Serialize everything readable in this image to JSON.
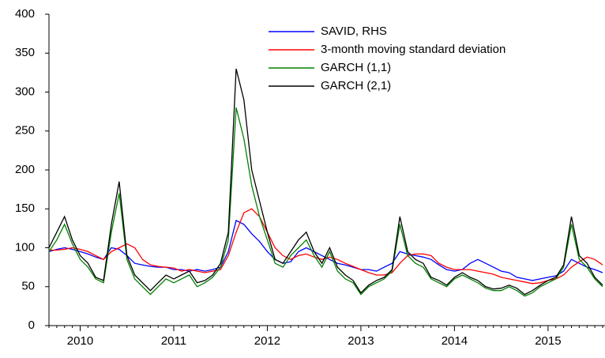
{
  "chart_data": {
    "type": "line",
    "categories": [
      null,
      null,
      null,
      null,
      "2010",
      null,
      null,
      null,
      null,
      null,
      null,
      null,
      null,
      null,
      null,
      null,
      "2011",
      null,
      null,
      null,
      null,
      null,
      null,
      null,
      null,
      null,
      null,
      null,
      "2012",
      null,
      null,
      null,
      null,
      null,
      null,
      null,
      null,
      null,
      null,
      null,
      "2013",
      null,
      null,
      null,
      null,
      null,
      null,
      null,
      null,
      null,
      null,
      null,
      "2014",
      null,
      null,
      null,
      null,
      null,
      null,
      null,
      null,
      null,
      null,
      null,
      "2015",
      null,
      null,
      null,
      null,
      null,
      null,
      null
    ],
    "series": [
      {
        "name": "SAVID, RHS",
        "color": "#0000ff",
        "values": [
          95,
          98,
          100,
          98,
          95,
          92,
          88,
          85,
          100,
          98,
          90,
          80,
          78,
          76,
          75,
          75,
          72,
          72,
          70,
          72,
          70,
          72,
          75,
          95,
          135,
          130,
          118,
          108,
          95,
          85,
          80,
          82,
          95,
          100,
          95,
          90,
          85,
          80,
          78,
          75,
          72,
          72,
          70,
          75,
          80,
          95,
          92,
          90,
          88,
          85,
          78,
          72,
          70,
          72,
          80,
          85,
          80,
          75,
          70,
          68,
          62,
          60,
          58,
          60,
          62,
          64,
          70,
          85,
          80,
          75,
          72,
          68
        ]
      },
      {
        "name": "3-month moving standard deviation",
        "color": "#ff0000",
        "values": [
          97,
          97,
          98,
          100,
          98,
          95,
          90,
          85,
          95,
          100,
          105,
          100,
          85,
          78,
          76,
          75,
          74,
          70,
          72,
          70,
          68,
          70,
          72,
          90,
          120,
          145,
          150,
          140,
          120,
          100,
          90,
          85,
          90,
          92,
          88,
          85,
          88,
          85,
          80,
          76,
          72,
          68,
          65,
          65,
          68,
          80,
          90,
          92,
          92,
          90,
          80,
          75,
          72,
          72,
          72,
          70,
          68,
          66,
          62,
          60,
          58,
          56,
          54,
          55,
          58,
          60,
          65,
          75,
          82,
          88,
          85,
          78
        ]
      },
      {
        "name": "GARCH (1,1)",
        "color": "#008000",
        "values": [
          95,
          110,
          130,
          105,
          85,
          75,
          60,
          55,
          120,
          170,
          85,
          60,
          50,
          40,
          50,
          60,
          55,
          60,
          65,
          50,
          55,
          62,
          75,
          110,
          280,
          240,
          180,
          140,
          110,
          80,
          75,
          90,
          100,
          110,
          90,
          75,
          95,
          70,
          60,
          55,
          40,
          50,
          55,
          60,
          70,
          130,
          90,
          80,
          75,
          60,
          55,
          50,
          60,
          65,
          60,
          55,
          48,
          45,
          45,
          50,
          45,
          38,
          42,
          50,
          55,
          60,
          75,
          130,
          85,
          75,
          60,
          50
        ]
      },
      {
        "name": "GARCH (2,1)",
        "color": "#000000",
        "values": [
          100,
          120,
          140,
          110,
          90,
          80,
          62,
          58,
          130,
          185,
          90,
          65,
          55,
          45,
          55,
          65,
          60,
          65,
          70,
          55,
          58,
          65,
          80,
          120,
          330,
          290,
          200,
          160,
          120,
          85,
          80,
          95,
          110,
          120,
          95,
          80,
          100,
          75,
          65,
          58,
          42,
          52,
          58,
          62,
          72,
          140,
          95,
          85,
          80,
          62,
          58,
          52,
          62,
          68,
          62,
          58,
          50,
          47,
          48,
          52,
          48,
          40,
          45,
          52,
          58,
          62,
          78,
          140,
          90,
          80,
          62,
          52
        ]
      }
    ],
    "ylim": [
      0,
      400
    ],
    "yticks": [
      0,
      50,
      100,
      150,
      200,
      250,
      300,
      350,
      400
    ]
  }
}
